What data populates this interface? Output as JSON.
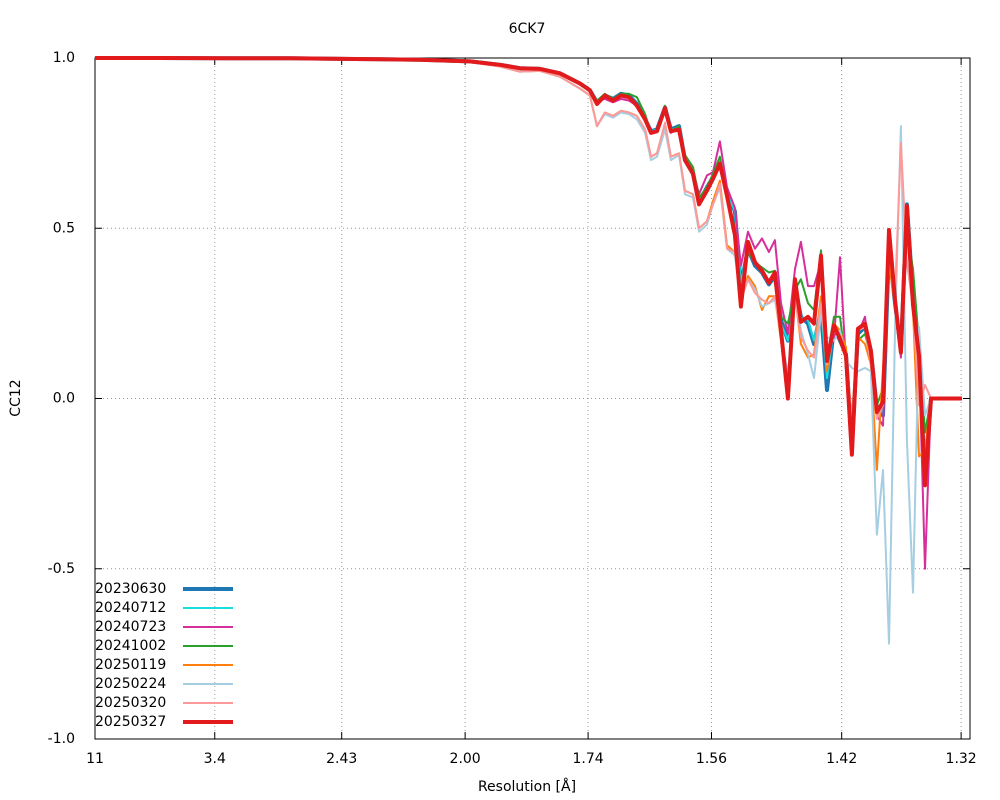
{
  "chart_data": {
    "type": "line",
    "title": "6CK7",
    "xlabel": "Resolution [Å]",
    "ylabel": "CC12",
    "xlim": [
      0.0083,
      0.5797
    ],
    "ylim": [
      -1,
      1
    ],
    "xticks": [
      {
        "value": 0.0083,
        "label": "11"
      },
      {
        "value": 0.0865,
        "label": "3.4"
      },
      {
        "value": 0.1694,
        "label": "2.43"
      },
      {
        "value": 0.25,
        "label": "2.00"
      },
      {
        "value": 0.3303,
        "label": "1.74"
      },
      {
        "value": 0.4109,
        "label": "1.56"
      },
      {
        "value": 0.4959,
        "label": "1.42"
      },
      {
        "value": 0.5739,
        "label": "1.32"
      }
    ],
    "yticks": [
      {
        "value": 1,
        "label": "1.0"
      },
      0.5,
      {
        "value": 0,
        "label": "0.0"
      },
      -0.5,
      {
        "value": -1,
        "label": "-1.0"
      }
    ],
    "grid": true,
    "legend": "lower left",
    "x": [
      0.0083,
      0.0507,
      0.0932,
      0.1356,
      0.1781,
      0.2205,
      0.2532,
      0.2728,
      0.2858,
      0.2989,
      0.3119,
      0.325,
      0.3315,
      0.3361,
      0.3413,
      0.3466,
      0.3518,
      0.357,
      0.3622,
      0.3675,
      0.3714,
      0.3753,
      0.3805,
      0.3844,
      0.3897,
      0.3936,
      0.3988,
      0.4027,
      0.4079,
      0.4119,
      0.4164,
      0.421,
      0.4262,
      0.4301,
      0.4347,
      0.4393,
      0.4439,
      0.4484,
      0.4523,
      0.4563,
      0.4608,
      0.4654,
      0.4693,
      0.4739,
      0.4778,
      0.4824,
      0.4863,
      0.4909,
      0.4948,
      0.4987,
      0.5026,
      0.5065,
      0.5111,
      0.515,
      0.5189,
      0.5229,
      0.5268,
      0.5307,
      0.5346,
      0.5385,
      0.5425,
      0.5464,
      0.5503,
      0.5542,
      0.5581,
      0.5745
    ],
    "series": [
      {
        "name": "20230630",
        "color": "#1f77b4",
        "linewidth": 4,
        "values": [
          1.0,
          1.0,
          0.999,
          0.999,
          0.997,
          0.995,
          0.99,
          0.98,
          0.97,
          0.968,
          0.955,
          0.925,
          0.905,
          0.87,
          0.89,
          0.88,
          0.895,
          0.89,
          0.865,
          0.82,
          0.785,
          0.79,
          0.855,
          0.79,
          0.8,
          0.7,
          0.66,
          0.575,
          0.62,
          0.65,
          0.69,
          0.6,
          0.55,
          0.33,
          0.44,
          0.39,
          0.37,
          0.335,
          0.36,
          0.23,
          0.17,
          0.33,
          0.24,
          0.22,
          0.16,
          0.26,
          0.025,
          0.21,
          0.17,
          0.13,
          -0.14,
          0.19,
          0.21,
          0.14,
          -0.03,
          -0.05,
          0.44,
          0.28,
          0.14,
          0.57,
          0.3,
          0.13,
          -0.24,
          0.0,
          0.0,
          0.0
        ]
      },
      {
        "name": "20240712",
        "color": "#17dcdc",
        "linewidth": 2,
        "values": [
          1.0,
          1.0,
          0.999,
          0.999,
          0.997,
          0.995,
          0.99,
          0.98,
          0.97,
          0.968,
          0.955,
          0.925,
          0.905,
          0.87,
          0.885,
          0.875,
          0.89,
          0.885,
          0.86,
          0.82,
          0.785,
          0.79,
          0.85,
          0.79,
          0.795,
          0.7,
          0.665,
          0.58,
          0.62,
          0.65,
          0.69,
          0.6,
          0.55,
          0.34,
          0.44,
          0.4,
          0.37,
          0.34,
          0.36,
          0.22,
          0.17,
          0.34,
          0.24,
          0.23,
          0.17,
          0.27,
          0.06,
          0.21,
          0.17,
          0.12,
          -0.13,
          0.2,
          0.21,
          0.13,
          -0.03,
          -0.04,
          0.43,
          0.28,
          0.14,
          0.55,
          0.3,
          0.13,
          -0.22,
          0.0,
          0.0,
          0.0
        ]
      },
      {
        "name": "20240723",
        "color": "#d62f9b",
        "linewidth": 2,
        "values": [
          1.0,
          1.0,
          0.999,
          0.999,
          0.997,
          0.995,
          0.99,
          0.98,
          0.97,
          0.968,
          0.955,
          0.925,
          0.905,
          0.875,
          0.88,
          0.87,
          0.88,
          0.875,
          0.86,
          0.82,
          0.785,
          0.785,
          0.85,
          0.78,
          0.795,
          0.705,
          0.67,
          0.6,
          0.655,
          0.665,
          0.755,
          0.62,
          0.56,
          0.39,
          0.49,
          0.44,
          0.47,
          0.43,
          0.465,
          0.28,
          0.19,
          0.38,
          0.46,
          0.33,
          0.33,
          0.4,
          0.13,
          0.18,
          0.415,
          0.1,
          -0.12,
          0.19,
          0.24,
          0.1,
          -0.05,
          -0.08,
          0.45,
          0.3,
          0.12,
          0.55,
          0.29,
          0.12,
          -0.5,
          0.0,
          0.0,
          0.0
        ]
      },
      {
        "name": "20241002",
        "color": "#2ca02c",
        "linewidth": 2,
        "values": [
          1.0,
          1.0,
          0.999,
          0.999,
          0.997,
          0.995,
          0.99,
          0.98,
          0.97,
          0.968,
          0.955,
          0.925,
          0.905,
          0.875,
          0.895,
          0.88,
          0.895,
          0.895,
          0.885,
          0.835,
          0.78,
          0.785,
          0.86,
          0.785,
          0.8,
          0.715,
          0.68,
          0.59,
          0.62,
          0.66,
          0.71,
          0.6,
          0.5,
          0.3,
          0.43,
          0.4,
          0.385,
          0.37,
          0.375,
          0.24,
          0.22,
          0.32,
          0.35,
          0.28,
          0.26,
          0.435,
          0.12,
          0.24,
          0.24,
          0.1,
          -0.05,
          0.17,
          0.19,
          0.12,
          -0.02,
          0.03,
          0.42,
          0.3,
          0.16,
          0.5,
          0.38,
          0.16,
          -0.1,
          0.0,
          0.0,
          0.0
        ]
      },
      {
        "name": "20250119",
        "color": "#ff7f0e",
        "linewidth": 2,
        "values": [
          1.0,
          1.0,
          0.999,
          0.999,
          0.997,
          0.994,
          0.988,
          0.975,
          0.96,
          0.962,
          0.945,
          0.91,
          0.89,
          0.8,
          0.84,
          0.83,
          0.845,
          0.84,
          0.83,
          0.79,
          0.71,
          0.72,
          0.8,
          0.71,
          0.72,
          0.61,
          0.6,
          0.5,
          0.52,
          0.58,
          0.64,
          0.45,
          0.43,
          0.3,
          0.36,
          0.33,
          0.26,
          0.3,
          0.3,
          0.17,
          0.02,
          0.31,
          0.16,
          0.12,
          0.13,
          0.3,
          0.08,
          0.22,
          0.2,
          0.15,
          -0.08,
          0.18,
          0.16,
          0.1,
          -0.21,
          0.09,
          0.4,
          0.27,
          0.14,
          0.52,
          0.26,
          -0.17,
          -0.15,
          0.0,
          0.0,
          0.0
        ]
      },
      {
        "name": "20250224",
        "color": "#a6cee3",
        "linewidth": 2,
        "values": [
          1.0,
          1.0,
          0.999,
          0.999,
          0.997,
          0.994,
          0.988,
          0.975,
          0.96,
          0.962,
          0.945,
          0.91,
          0.89,
          0.8,
          0.835,
          0.825,
          0.84,
          0.835,
          0.82,
          0.78,
          0.7,
          0.71,
          0.79,
          0.7,
          0.715,
          0.6,
          0.59,
          0.49,
          0.51,
          0.57,
          0.62,
          0.44,
          0.42,
          0.29,
          0.35,
          0.32,
          0.27,
          0.28,
          0.29,
          0.19,
          0.07,
          0.32,
          0.2,
          0.13,
          0.06,
          0.25,
          0.18,
          0.17,
          0.2,
          0.11,
          0.09,
          0.08,
          0.09,
          0.08,
          -0.4,
          -0.21,
          -0.72,
          0.2,
          0.8,
          -0.12,
          -0.57,
          0.21,
          -0.05,
          0.0,
          0.0,
          0.0
        ]
      },
      {
        "name": "20250320",
        "color": "#fb9a99",
        "linewidth": 2,
        "values": [
          1.0,
          1.0,
          0.999,
          0.999,
          0.997,
          0.994,
          0.988,
          0.975,
          0.96,
          0.962,
          0.945,
          0.91,
          0.89,
          0.8,
          0.84,
          0.83,
          0.845,
          0.84,
          0.83,
          0.79,
          0.71,
          0.72,
          0.81,
          0.71,
          0.72,
          0.61,
          0.6,
          0.5,
          0.52,
          0.57,
          0.63,
          0.44,
          0.43,
          0.29,
          0.35,
          0.31,
          0.29,
          0.28,
          0.3,
          0.18,
          0.03,
          0.3,
          0.18,
          0.14,
          0.12,
          0.28,
          0.1,
          0.2,
          0.18,
          0.13,
          -0.06,
          0.2,
          0.21,
          0.1,
          -0.06,
          -0.02,
          0.45,
          0.3,
          0.75,
          0.4,
          0.27,
          -0.02,
          0.04,
          0.0,
          0.0,
          0.0
        ]
      },
      {
        "name": "20250327",
        "color": "#e31a1c",
        "linewidth": 4,
        "values": [
          1.0,
          1.0,
          0.999,
          0.999,
          0.997,
          0.995,
          0.99,
          0.98,
          0.97,
          0.968,
          0.955,
          0.925,
          0.905,
          0.865,
          0.89,
          0.875,
          0.89,
          0.885,
          0.86,
          0.82,
          0.78,
          0.785,
          0.853,
          0.785,
          0.79,
          0.7,
          0.66,
          0.57,
          0.61,
          0.645,
          0.69,
          0.595,
          0.48,
          0.27,
          0.46,
          0.4,
          0.375,
          0.34,
          0.37,
          0.2,
          0.0,
          0.35,
          0.225,
          0.24,
          0.22,
          0.42,
          0.11,
          0.215,
          0.175,
          0.125,
          -0.165,
          0.205,
          0.22,
          0.14,
          -0.04,
          -0.01,
          0.495,
          0.29,
          0.135,
          0.565,
          0.275,
          0.125,
          -0.255,
          0.0,
          0.0,
          0.0
        ]
      }
    ]
  }
}
